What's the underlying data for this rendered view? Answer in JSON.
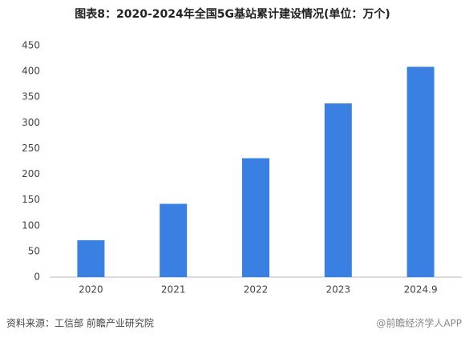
{
  "chart_data": {
    "type": "bar",
    "title": "图表8：2020-2024年全国5G基站累计建设情况(单位：万个)",
    "categories": [
      "2020",
      "2021",
      "2022",
      "2023",
      "2024.9"
    ],
    "values": [
      71.8,
      142.5,
      231.2,
      337.7,
      408.9
    ],
    "color": "#3a80e3",
    "ylim": [
      0,
      450
    ],
    "yticks": [
      0,
      50,
      100,
      150,
      200,
      250,
      300,
      350,
      400,
      450
    ],
    "grid": false
  },
  "footer": {
    "source": "资料来源：工信部 前瞻产业研究院",
    "brand": "@前瞻经济学人APP"
  }
}
